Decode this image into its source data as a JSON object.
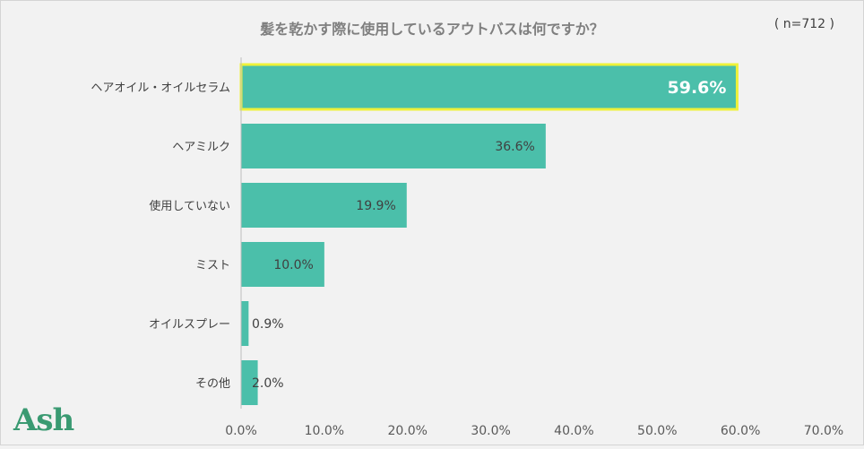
{
  "title": "髪を乾かす際に使用しているアウトバスは何ですか？",
  "sample_note": "( n=712 )",
  "logo_text": "Ash",
  "colors": {
    "bar": "#4bbfaa",
    "highlight": "#eef13a",
    "background": "#f2f2f2",
    "text": "#404040"
  },
  "chart_data": {
    "type": "bar",
    "orientation": "horizontal",
    "title": "髪を乾かす際に使用しているアウトバスは何ですか？",
    "categories": [
      "ヘアオイル・オイルセラム",
      "ヘアミルク",
      "使用していない",
      "ミスト",
      "オイルスプレー",
      "その他"
    ],
    "values": [
      59.6,
      36.6,
      19.9,
      10.0,
      0.9,
      2.0
    ],
    "value_labels": [
      "59.6%",
      "36.6%",
      "19.9%",
      "10.0%",
      "0.9%",
      "2.0%"
    ],
    "xlim": [
      0,
      70
    ],
    "xticks": [
      "0.0%",
      "10.0%",
      "20.0%",
      "30.0%",
      "40.0%",
      "50.0%",
      "60.0%",
      "70.0%"
    ],
    "highlighted_category": "ヘアオイル・オイルセラム",
    "grid": false
  }
}
